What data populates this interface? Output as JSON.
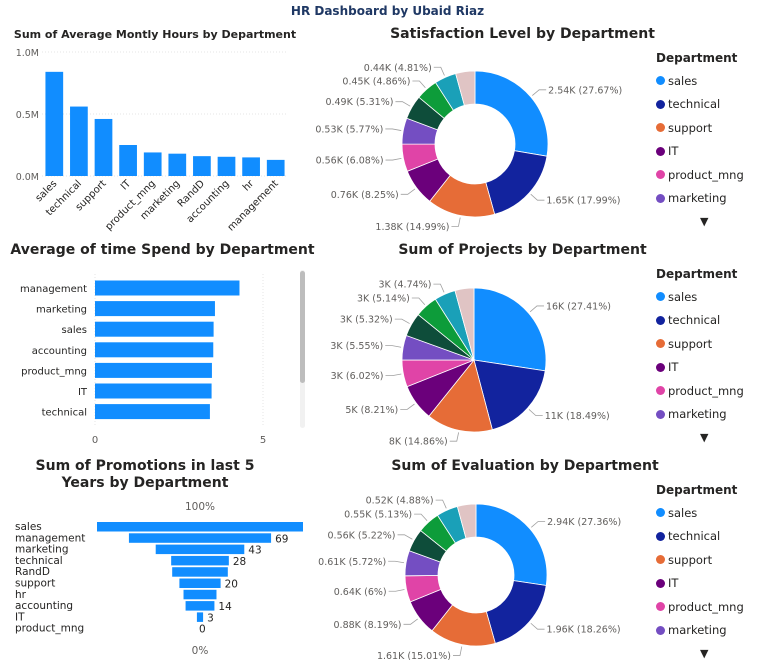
{
  "dashboard_title": "HR Dashboard by Ubaid Riaz",
  "colors": {
    "sales": "#118dff",
    "technical": "#12239e",
    "support": "#e66c37",
    "IT": "#6b007b",
    "product_mng": "#e044a7",
    "marketing": "#744ec2",
    "accounting": "#0e4d3a",
    "RandD": "#0d9c3a",
    "management": "#1aa0b8",
    "hr": "#e0c4c4"
  },
  "legend": {
    "title": "Department",
    "items": [
      "sales",
      "technical",
      "support",
      "IT",
      "product_mng",
      "marketing"
    ],
    "more_icon": "▼"
  },
  "chart_data": [
    {
      "type": "bar",
      "title": "Sum of Average Montly Hours by Department",
      "categories": [
        "sales",
        "technical",
        "support",
        "IT",
        "product_mng",
        "marketing",
        "RandD",
        "accounting",
        "hr",
        "management"
      ],
      "values": [
        0.84,
        0.56,
        0.46,
        0.25,
        0.19,
        0.18,
        0.16,
        0.155,
        0.15,
        0.13
      ],
      "unit": "M",
      "yticks": [
        "0.0M",
        "0.5M",
        "1.0M"
      ],
      "ylim": [
        0,
        1.0
      ],
      "xlabel": "",
      "ylabel": "",
      "color": "#118dff"
    },
    {
      "type": "bar",
      "orientation": "horizontal",
      "title": "Average of time Spend by Department",
      "categories": [
        "management",
        "marketing",
        "sales",
        "accounting",
        "product_mng",
        "IT",
        "technical"
      ],
      "values": [
        4.3,
        3.57,
        3.53,
        3.52,
        3.48,
        3.47,
        3.42
      ],
      "xticks": [
        "0",
        "5"
      ],
      "xlim": [
        0,
        6
      ],
      "color": "#118dff"
    },
    {
      "type": "funnel",
      "title": "Sum of Promotions in last 5 Years by Department",
      "categories": [
        "sales",
        "management",
        "marketing",
        "technical",
        "RandD",
        "support",
        "hr",
        "accounting",
        "IT",
        "product_mng"
      ],
      "values": [
        100,
        69,
        43,
        28,
        27,
        20,
        16,
        14,
        3,
        0
      ],
      "value_labels": [
        "",
        "69",
        "43",
        "28",
        "",
        "20",
        "",
        "14",
        "3",
        "0"
      ],
      "top_label": "100%",
      "bottom_label": "0%",
      "color": "#118dff"
    },
    {
      "type": "pie",
      "style": "donut",
      "title": "Satisfaction Level by Department",
      "categories": [
        "sales",
        "technical",
        "support",
        "IT",
        "product_mng",
        "marketing",
        "accounting",
        "RandD",
        "management",
        "hr"
      ],
      "values": [
        27.67,
        17.99,
        14.99,
        8.25,
        6.08,
        5.77,
        5.31,
        4.86,
        4.81,
        4.27
      ],
      "labels": [
        "2.54K (27.67%)",
        "1.65K (17.99%)",
        "1.38K (14.99%)",
        "0.76K (8.25%)",
        "0.56K (6.08%)",
        "0.53K (5.77%)",
        "0.49K (5.31%)",
        "0.45K (4.86%)",
        "0.44K (4.81%)",
        ""
      ]
    },
    {
      "type": "pie",
      "title": "Sum of Projects by Department",
      "categories": [
        "sales",
        "technical",
        "support",
        "IT",
        "product_mng",
        "marketing",
        "accounting",
        "RandD",
        "management",
        "hr"
      ],
      "values": [
        27.41,
        18.49,
        14.86,
        8.21,
        6.02,
        5.55,
        5.32,
        5.14,
        4.74,
        4.26
      ],
      "labels": [
        "16K (27.41%)",
        "11K (18.49%)",
        "8K (14.86%)",
        "5K (8.21%)",
        "3K (6.02%)",
        "3K (5.55%)",
        "3K (5.32%)",
        "3K (5.14%)",
        "3K (4.74%)",
        ""
      ]
    },
    {
      "type": "pie",
      "style": "donut",
      "title": "Sum of Evaluation by Department",
      "categories": [
        "sales",
        "technical",
        "support",
        "IT",
        "product_mng",
        "marketing",
        "accounting",
        "RandD",
        "management",
        "hr"
      ],
      "values": [
        27.36,
        18.26,
        15.01,
        8.19,
        6.0,
        5.72,
        5.22,
        5.13,
        4.88,
        4.23
      ],
      "labels": [
        "2.94K (27.36%)",
        "1.96K (18.26%)",
        "1.61K (15.01%)",
        "0.88K (8.19%)",
        "0.64K (6%)",
        "0.61K (5.72%)",
        "0.56K (5.22%)",
        "0.55K (5.13%)",
        "0.52K (4.88%)",
        ""
      ]
    }
  ]
}
